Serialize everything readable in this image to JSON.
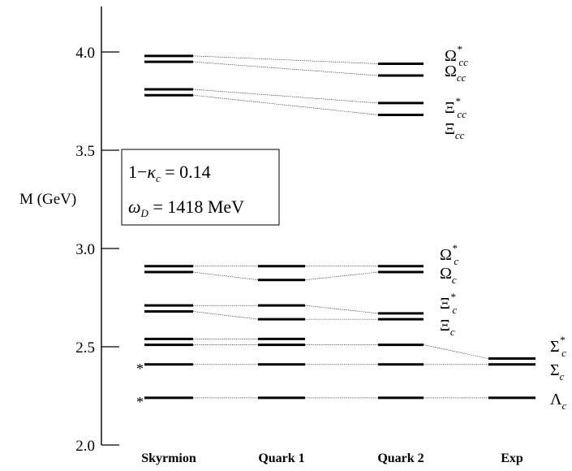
{
  "chart_data": {
    "type": "other",
    "ylabel": "M (GeV)",
    "ylim": [
      2.0,
      4.2
    ],
    "yticks": [
      "2.0",
      "2.5",
      "3.0",
      "3.5",
      "4.0"
    ],
    "columns": [
      "Skyrmion",
      "Quark 1",
      "Quark 2",
      "Exp"
    ],
    "annotation_box": {
      "line1": {
        "pre": "1−",
        "sym": "κ",
        "sub": "c",
        "post": " = 0.14"
      },
      "line2": {
        "sym": "ω",
        "sub": "D",
        "post": " = 1418  MeV"
      }
    },
    "series": [
      {
        "values": [
          3.98,
          null,
          3.94,
          null
        ]
      },
      {
        "values": [
          3.95,
          null,
          3.88,
          null
        ]
      },
      {
        "values": [
          3.81,
          null,
          3.74,
          null
        ]
      },
      {
        "values": [
          3.78,
          null,
          3.68,
          null
        ]
      },
      {
        "values": [
          2.91,
          2.91,
          2.91,
          null
        ]
      },
      {
        "values": [
          2.88,
          2.84,
          2.88,
          null
        ]
      },
      {
        "values": [
          2.71,
          2.71,
          2.67,
          null
        ]
      },
      {
        "values": [
          2.68,
          2.64,
          2.64,
          null
        ]
      },
      {
        "values": [
          2.54,
          2.54,
          null,
          null
        ]
      },
      {
        "values": [
          2.51,
          2.51,
          2.51,
          2.44
        ]
      },
      {
        "values": [
          2.41,
          2.41,
          2.41,
          2.41
        ]
      },
      {
        "values": [
          2.24,
          2.24,
          2.24,
          2.24
        ]
      }
    ],
    "starred_levels": [
      2.41,
      2.24
    ],
    "state_labels": [
      {
        "base": "Ω",
        "sup": "*",
        "sub": "cc"
      },
      {
        "base": "Ω",
        "sup": "",
        "sub": "cc"
      },
      {
        "base": "Ξ",
        "sup": "*",
        "sub": "cc"
      },
      {
        "base": "Ξ",
        "sup": "",
        "sub": "cc"
      },
      {
        "base": "Ω",
        "sup": "*",
        "sub": "c"
      },
      {
        "base": "Ω",
        "sup": "",
        "sub": "c"
      },
      {
        "base": "Ξ",
        "sup": "*",
        "sub": "c"
      },
      {
        "base": "Ξ",
        "sup": "",
        "sub": "c"
      },
      {
        "base": "Σ",
        "sup": "*",
        "sub": "c"
      },
      {
        "base": "Σ",
        "sup": "",
        "sub": "c"
      },
      {
        "base": "Λ",
        "sup": "",
        "sub": "c"
      }
    ],
    "star_symbol": "*",
    "grid": false,
    "legend": "none"
  }
}
